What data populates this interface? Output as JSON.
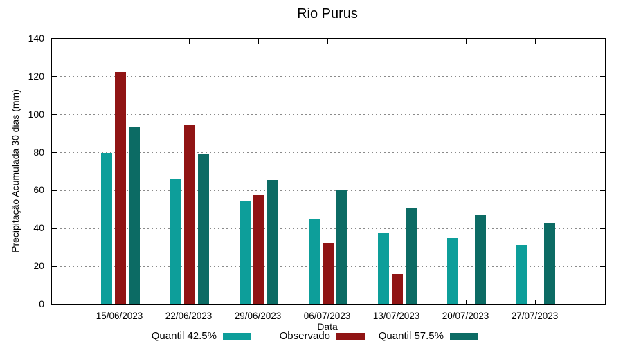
{
  "chart_data": {
    "type": "bar",
    "title": "Rio Purus",
    "xlabel": "Data",
    "ylabel": "Precipitação Acumulada 30 dias (mm)",
    "ylim": [
      0,
      140
    ],
    "yticks": [
      0,
      20,
      40,
      60,
      80,
      100,
      120,
      140
    ],
    "grid": true,
    "legend_position": "bottom-center",
    "background_color": "#ffffff",
    "axis_color": "#000000",
    "gridline_color": "#8a8a8a",
    "categories": [
      "15/06/2023",
      "22/06/2023",
      "29/06/2023",
      "06/07/2023",
      "13/07/2023",
      "20/07/2023",
      "27/07/2023"
    ],
    "series": [
      {
        "name": "Quantil 42.5%",
        "color": "#0d9e9a",
        "values": [
          80,
          66.5,
          54.5,
          45,
          37.5,
          35,
          31.5
        ]
      },
      {
        "name": "Observado",
        "color": "#901414",
        "values": [
          122.5,
          94.5,
          57.5,
          32.5,
          16,
          null,
          null
        ]
      },
      {
        "name": "Quantil 57.5%",
        "color": "#0c6b64",
        "values": [
          93.5,
          79,
          65.5,
          60.5,
          51,
          47,
          43
        ]
      }
    ]
  }
}
